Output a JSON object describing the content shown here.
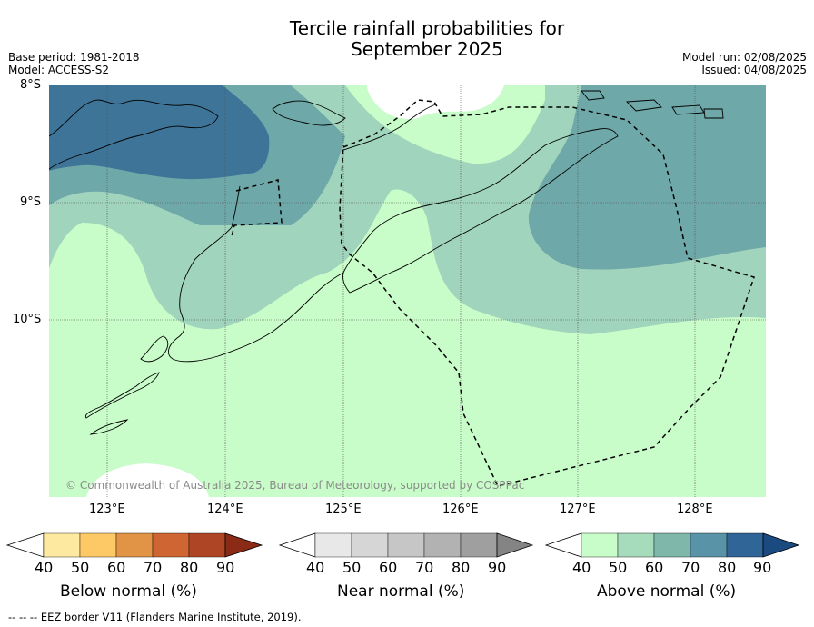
{
  "title_line1": "Tercile rainfall probabilities for",
  "title_line2": "September 2025",
  "meta_left": {
    "line1": "Base period: 1981-2018",
    "line2": "Model: ACCESS-S2"
  },
  "meta_right": {
    "line1": "Model run: 02/08/2025",
    "line2": "Issued: 04/08/2025"
  },
  "lat_labels": [
    "8°S",
    "9°S",
    "10°S"
  ],
  "lon_labels": [
    "123°E",
    "124°E",
    "125°E",
    "126°E",
    "127°E",
    "128°E"
  ],
  "copyright": "© Commonwealth of Australia 2025, Bureau of Meteorology, supported by COSPPac",
  "colorbars": [
    {
      "label": "Below normal (%)",
      "ticks": [
        "40",
        "50",
        "60",
        "70",
        "80",
        "90"
      ],
      "colors": [
        "#ffffff",
        "#fdeaa0",
        "#fdc966",
        "#e29446",
        "#cf6533",
        "#ae4626",
        "#8b2a16"
      ]
    },
    {
      "label": "Near normal (%)",
      "ticks": [
        "40",
        "50",
        "60",
        "70",
        "80",
        "90"
      ],
      "colors": [
        "#ffffff",
        "#e8e8e8",
        "#d6d6d6",
        "#c6c6c6",
        "#b2b2b2",
        "#9f9f9f",
        "#848484"
      ]
    },
    {
      "label": "Above normal (%)",
      "ticks": [
        "40",
        "50",
        "60",
        "70",
        "80",
        "90"
      ],
      "colors": [
        "#ffffff",
        "#c8fcc8",
        "#a6dbbb",
        "#7fb8aa",
        "#5893a8",
        "#2f6597",
        "#1a4a80"
      ]
    }
  ],
  "footer": "--  --  -- EEZ border V11 (Flanders Marine Institute, 2019)."
}
